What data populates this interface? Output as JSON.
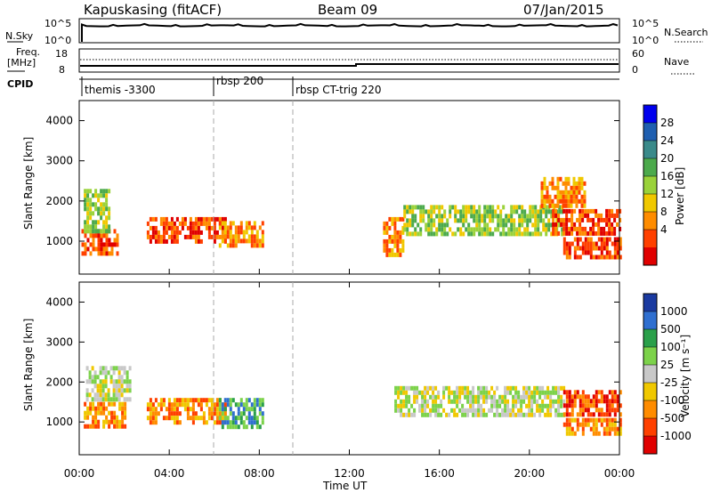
{
  "header": {
    "station": "Kapuskasing (fitACF)",
    "beam": "Beam 09",
    "date": "07/Jan/2015"
  },
  "noise_panel": {
    "left_label": "N.Sky",
    "left_ticks": [
      "10^5",
      "10^0"
    ],
    "right_ticks": [
      "10^5",
      "10^0"
    ],
    "right_label": "N.Search"
  },
  "freq_panel": {
    "left_label_line1": "Freq.",
    "left_label_line2": "[MHz]",
    "left_ticks": [
      "18",
      "8"
    ],
    "right_ticks": [
      "60",
      "0"
    ],
    "right_label": "Nave"
  },
  "cpid": {
    "label": "CPID",
    "segments": [
      {
        "name": "themis -3300",
        "start_hour": 0.0
      },
      {
        "name": "rbsp 200",
        "start_hour": 6.0
      },
      {
        "name": "rbsp CT-trig 220",
        "start_hour": 9.6
      }
    ]
  },
  "power_panel": {
    "ylabel": "Slant Range [km]",
    "yticks": [
      "4000",
      "3000",
      "2000",
      "1000"
    ],
    "colorbar_label": "Power [dB]",
    "colorbar_ticks": [
      "28",
      "24",
      "20",
      "16",
      "12",
      "8",
      "4"
    ],
    "colors": [
      "#0000ee",
      "#1f5fb0",
      "#3a8a8a",
      "#4caa4c",
      "#9ad23a",
      "#f0c800",
      "#ff8c00",
      "#ff4000",
      "#e00000"
    ]
  },
  "velocity_panel": {
    "ylabel": "Slant Range [km]",
    "yticks": [
      "4000",
      "3000",
      "2000",
      "1000"
    ],
    "colorbar_label": "Velocity [m s⁻¹]",
    "colorbar_ticks": [
      "1000",
      "500",
      "100",
      "25",
      "-25",
      "-100",
      "-500",
      "-1000"
    ],
    "colors": [
      "#1a3aa0",
      "#2f6fd0",
      "#2aa04a",
      "#7cd24a",
      "#c8c8c8",
      "#f0c800",
      "#ff8c00",
      "#ff4000",
      "#e00000"
    ]
  },
  "x_axis": {
    "xlabel": "Time UT",
    "ticks": [
      "00:00",
      "04:00",
      "08:00",
      "12:00",
      "16:00",
      "20:00",
      "00:00"
    ]
  },
  "chart_data": {
    "type": "heatmap",
    "x_unit": "hours UT",
    "xlim": [
      0,
      24
    ],
    "ylim_km": [
      180,
      4500
    ],
    "power_regions": [
      {
        "t0": 0.1,
        "t1": 1.7,
        "r0": 700,
        "r1": 1300,
        "level": 7
      },
      {
        "t0": 0.2,
        "t1": 1.3,
        "r0": 1300,
        "r1": 2300,
        "level": 4
      },
      {
        "t0": 3.0,
        "t1": 6.5,
        "r0": 1000,
        "r1": 1600,
        "level": 7
      },
      {
        "t0": 6.2,
        "t1": 8.2,
        "r0": 900,
        "r1": 1500,
        "level": 6
      },
      {
        "t0": 13.5,
        "t1": 14.4,
        "r0": 700,
        "r1": 1600,
        "level": 6
      },
      {
        "t0": 14.4,
        "t1": 21.5,
        "r0": 1200,
        "r1": 1900,
        "level": 4
      },
      {
        "t0": 21.0,
        "t1": 24.0,
        "r0": 1200,
        "r1": 1800,
        "level": 7
      },
      {
        "t0": 20.5,
        "t1": 22.5,
        "r0": 1900,
        "r1": 2600,
        "level": 6
      },
      {
        "t0": 21.5,
        "t1": 24.0,
        "r0": 600,
        "r1": 1100,
        "level": 7
      }
    ],
    "velocity_regions": [
      {
        "t0": 0.3,
        "t1": 2.2,
        "r0": 1600,
        "r1": 2400,
        "level": 4
      },
      {
        "t0": 0.2,
        "t1": 2.0,
        "r0": 900,
        "r1": 1500,
        "level": 6
      },
      {
        "t0": 3.0,
        "t1": 6.5,
        "r0": 1000,
        "r1": 1600,
        "level": 6
      },
      {
        "t0": 6.2,
        "t1": 8.2,
        "r0": 900,
        "r1": 1600,
        "level": 2
      },
      {
        "t0": 14.0,
        "t1": 21.5,
        "r0": 1200,
        "r1": 1900,
        "level": 4
      },
      {
        "t0": 21.5,
        "t1": 24.0,
        "r0": 1200,
        "r1": 1800,
        "level": 7
      },
      {
        "t0": 21.5,
        "t1": 24.0,
        "r0": 700,
        "r1": 1100,
        "level": 6
      }
    ]
  }
}
